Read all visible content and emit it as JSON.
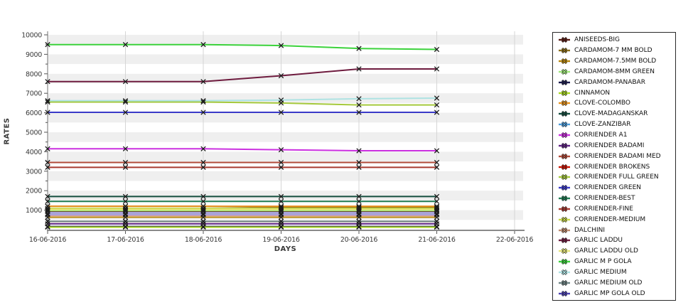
{
  "chart_data": {
    "type": "line",
    "title": "",
    "xlabel": "DAYS",
    "ylabel": "RATES",
    "categories": [
      "16-06-2016",
      "17-06-2016",
      "18-06-2016",
      "19-06-2016",
      "20-06-2016",
      "21-06-2016",
      "22-06-2016"
    ],
    "ylim": [
      0,
      10000
    ],
    "y_tick_step": 1000,
    "y_minor_tick_step": 500,
    "grid": true,
    "marker": "x",
    "legend_position": "right",
    "layout_colors": {
      "plot_band": "#efefef",
      "plot_background": "#ffffff",
      "grid_line": "#d6d6d6",
      "axis_line": "#8a8a8a",
      "tick_text": "#3a3a3a",
      "point_marker": "#1c1c1c",
      "legend_border": "#2a2a2a"
    },
    "series": [
      {
        "name": "ANISEEDS-BIG",
        "color": "#5a1a12",
        "values": [
          930,
          930,
          930,
          930,
          930,
          930
        ]
      },
      {
        "name": "CARDAMOM-7 MM BOLD",
        "color": "#8a6d1a",
        "values": [
          1200,
          1200,
          1200,
          1150,
          1150,
          1150
        ]
      },
      {
        "name": "CARDAMOM-7.5MM BOLD",
        "color": "#b8860b",
        "values": [
          640,
          640,
          640,
          640,
          640,
          640
        ]
      },
      {
        "name": "CARDAMOM-8MM GREEN",
        "color": "#9fe87a",
        "values": [
          975,
          975,
          975,
          975,
          975,
          975
        ]
      },
      {
        "name": "CARDAMOM-PANABAR",
        "color": "#1c1c4e",
        "values": [
          160,
          160,
          160,
          160,
          160,
          160
        ]
      },
      {
        "name": "CINNAMON",
        "color": "#a8d820",
        "values": [
          130,
          130,
          130,
          130,
          130,
          130
        ]
      },
      {
        "name": "CLOVE-COLOMBO",
        "color": "#e8931d",
        "values": [
          1200,
          1200,
          1200,
          1200,
          1200,
          1200
        ]
      },
      {
        "name": "CLOVE-MADAGANSKAR",
        "color": "#144d3e",
        "values": [
          1700,
          1700,
          1700,
          1700,
          1700,
          1700
        ]
      },
      {
        "name": "CLOVE-ZANZIBAR",
        "color": "#4d9bd9",
        "values": [
          760,
          760,
          760,
          760,
          760,
          760
        ]
      },
      {
        "name": "CORRIENDER A1",
        "color": "#cb30e0",
        "values": [
          4150,
          4150,
          4150,
          4100,
          4050,
          4050
        ]
      },
      {
        "name": "CORRIENDER BADAMI",
        "color": "#5e2283",
        "values": [
          300,
          300,
          300,
          300,
          300,
          300
        ]
      },
      {
        "name": "CORRIENDER BADAMI MED",
        "color": "#b04a38",
        "values": [
          3450,
          3450,
          3450,
          3450,
          3450,
          3450
        ]
      },
      {
        "name": "CORRIENDER BROKENS",
        "color": "#cc1200",
        "values": [
          770,
          770,
          770,
          770,
          770,
          770
        ],
        "line_width": 3
      },
      {
        "name": "CORRIENDER FULL GREEN",
        "color": "#a5c93c",
        "values": [
          6550,
          6550,
          6550,
          6500,
          6400,
          6400
        ]
      },
      {
        "name": "CORRIENDER GREEN",
        "color": "#3a3ac8",
        "values": [
          6020,
          6020,
          6020,
          6020,
          6020,
          6020
        ]
      },
      {
        "name": "CORRIENDER-BEST",
        "color": "#1e7a52",
        "values": [
          1450,
          1450,
          1450,
          1450,
          1450,
          1450
        ]
      },
      {
        "name": "CORRIENDER-FINE",
        "color": "#a8392f",
        "values": [
          3200,
          3200,
          3200,
          3200,
          3200,
          3200
        ]
      },
      {
        "name": "CORRIENDER-MEDIUM",
        "color": "#c8d84a",
        "values": [
          1090,
          1090,
          1090,
          1090,
          1090,
          1090
        ]
      },
      {
        "name": "DALCHINI",
        "color": "#bd8a6e",
        "values": [
          420,
          420,
          420,
          420,
          420,
          420
        ]
      },
      {
        "name": "GARLIC LADDU",
        "color": "#6e1b3e",
        "values": [
          7600,
          7600,
          7600,
          7900,
          8250,
          8250
        ]
      },
      {
        "name": "GARLIC LADDU OLD",
        "color": "#e6e67a",
        "values": [
          1030,
          1030,
          1030,
          1030,
          1030,
          1030
        ]
      },
      {
        "name": "GARLIC M P GOLA",
        "color": "#3bd23b",
        "values": [
          9500,
          9500,
          9500,
          9450,
          9300,
          9250
        ]
      },
      {
        "name": "GARLIC MEDIUM",
        "color": "#aee3e3",
        "values": [
          6620,
          6620,
          6620,
          6650,
          6720,
          6750
        ]
      },
      {
        "name": "GARLIC MEDIUM OLD",
        "color": "#6e8585",
        "values": [
          430,
          430,
          430,
          430,
          430,
          430
        ]
      },
      {
        "name": "GARLIC MP GOLA OLD",
        "color": "#4a40b0",
        "line_color": "#a9a3d9",
        "line_width": 5,
        "values": [
          820,
          820,
          820,
          820,
          820,
          820
        ]
      }
    ]
  }
}
